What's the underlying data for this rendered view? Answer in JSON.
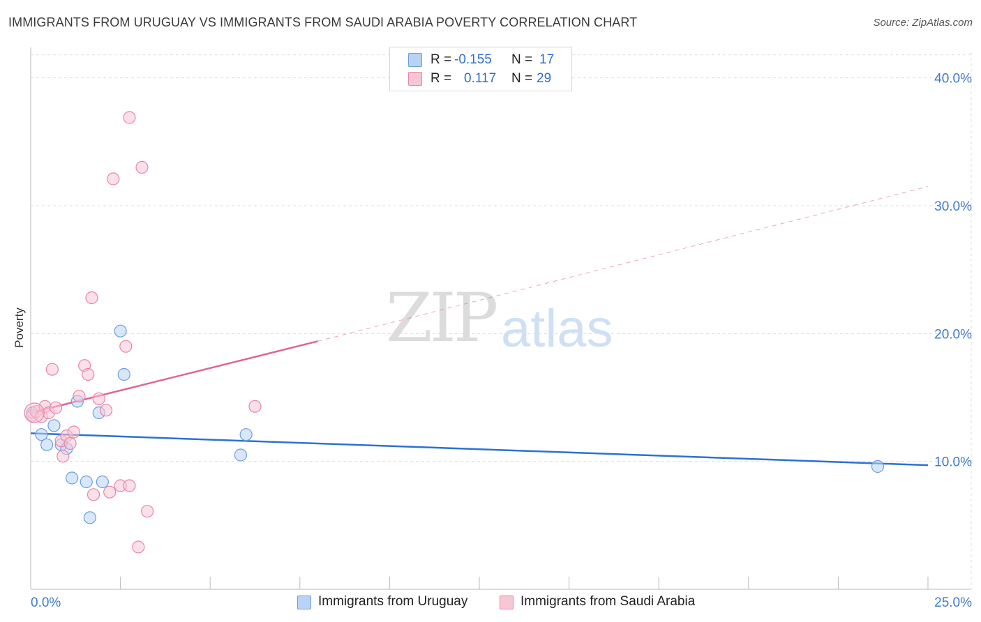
{
  "header": {
    "title": "IMMIGRANTS FROM URUGUAY VS IMMIGRANTS FROM SAUDI ARABIA POVERTY CORRELATION CHART",
    "source": "Source: ZipAtlas.com"
  },
  "watermark": {
    "zip": "ZIP",
    "atlas": "atlas"
  },
  "legend": {
    "rows": [
      {
        "r_label": "R =",
        "r_value": "-0.155",
        "n_label": "N =",
        "n_value": "17"
      },
      {
        "r_label": "R =",
        "r_value": "0.117",
        "n_label": "N =",
        "n_value": "29"
      }
    ]
  },
  "colors": {
    "uruguay_fill": "#b9d3f6",
    "uruguay_stroke": "#6a9fe0",
    "uruguay_line": "#2b72d1",
    "saudi_fill": "#f9c6d6",
    "saudi_stroke": "#e884a7",
    "saudi_line": "#e06592",
    "axis_label": "#3f7ad0",
    "grid": "#dddddd"
  },
  "chart_data": {
    "type": "scatter",
    "title": "IMMIGRANTS FROM URUGUAY VS IMMIGRANTS FROM SAUDI ARABIA POVERTY CORRELATION CHART",
    "xlabel": "",
    "ylabel": "Poverty",
    "xlim": [
      0,
      25
    ],
    "ylim": [
      0,
      42
    ],
    "x_tick_labels": [
      "0.0%",
      "25.0%"
    ],
    "y_ticks": [
      10,
      20,
      30,
      40
    ],
    "y_tick_labels": [
      "10.0%",
      "20.0%",
      "30.0%",
      "40.0%"
    ],
    "grid": true,
    "series": [
      {
        "name": "Immigrants from Uruguay",
        "R": -0.155,
        "N": 17,
        "points": [
          [
            0.05,
            13.8
          ],
          [
            0.3,
            12.1
          ],
          [
            0.45,
            11.3
          ],
          [
            0.65,
            12.8
          ],
          [
            0.85,
            11.3
          ],
          [
            1.0,
            11.0
          ],
          [
            1.15,
            8.7
          ],
          [
            1.3,
            14.7
          ],
          [
            1.55,
            8.4
          ],
          [
            1.65,
            5.6
          ],
          [
            1.9,
            13.8
          ],
          [
            2.0,
            8.4
          ],
          [
            2.5,
            20.2
          ],
          [
            2.6,
            16.8
          ],
          [
            5.85,
            10.5
          ],
          [
            6.0,
            12.1
          ],
          [
            23.6,
            9.6
          ]
        ],
        "trend": {
          "x": [
            0,
            25
          ],
          "y": [
            12.2,
            9.7
          ],
          "style": "solid"
        }
      },
      {
        "name": "Immigrants from Saudi Arabia",
        "R": 0.117,
        "N": 29,
        "points": [
          [
            0.05,
            13.6
          ],
          [
            0.15,
            13.9
          ],
          [
            0.3,
            13.5
          ],
          [
            0.4,
            14.3
          ],
          [
            0.5,
            13.8
          ],
          [
            0.6,
            17.2
          ],
          [
            0.7,
            14.2
          ],
          [
            0.85,
            11.6
          ],
          [
            0.9,
            10.4
          ],
          [
            1.0,
            12.0
          ],
          [
            1.1,
            11.4
          ],
          [
            1.2,
            12.3
          ],
          [
            1.35,
            15.1
          ],
          [
            1.5,
            17.5
          ],
          [
            1.6,
            16.8
          ],
          [
            1.7,
            22.8
          ],
          [
            1.75,
            7.4
          ],
          [
            1.9,
            14.9
          ],
          [
            2.1,
            14.0
          ],
          [
            2.2,
            7.6
          ],
          [
            2.3,
            32.1
          ],
          [
            2.5,
            8.1
          ],
          [
            2.65,
            19.0
          ],
          [
            2.75,
            36.9
          ],
          [
            2.75,
            8.1
          ],
          [
            3.0,
            3.3
          ],
          [
            3.1,
            33.0
          ],
          [
            3.25,
            6.1
          ],
          [
            6.25,
            14.3
          ]
        ],
        "trend": {
          "x": [
            0,
            8
          ],
          "y": [
            13.8,
            19.4
          ],
          "style": "solid",
          "extension": {
            "x": [
              8,
              25
            ],
            "y": [
              19.4,
              31.5
            ],
            "style": "dashed"
          }
        }
      }
    ],
    "legend_position": "top-center"
  },
  "bottom_legend": {
    "items": [
      {
        "label": "Immigrants from Uruguay"
      },
      {
        "label": "Immigrants from Saudi Arabia"
      }
    ]
  }
}
